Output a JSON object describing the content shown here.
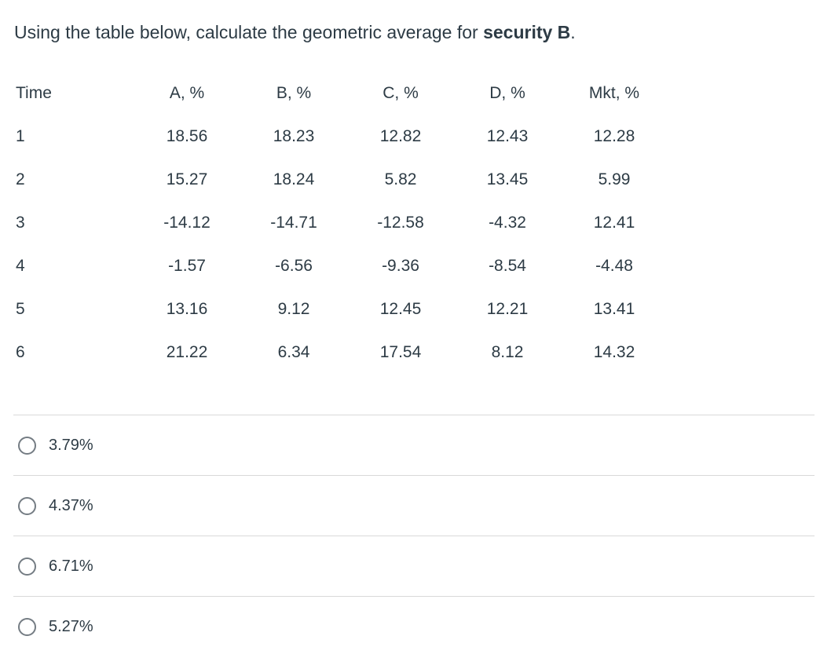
{
  "question": {
    "prefix": "Using the table below, calculate the geometric average for ",
    "emphasis": "security B",
    "suffix": "."
  },
  "table": {
    "headers": [
      "Time",
      "A, %",
      "B, %",
      "C, %",
      "D, %",
      "Mkt, %"
    ],
    "rows": [
      [
        "1",
        "18.56",
        "18.23",
        "12.82",
        "12.43",
        "12.28"
      ],
      [
        "2",
        "15.27",
        "18.24",
        "5.82",
        "13.45",
        "5.99"
      ],
      [
        "3",
        "-14.12",
        "-14.71",
        "-12.58",
        "-4.32",
        "12.41"
      ],
      [
        "4",
        "-1.57",
        "-6.56",
        "-9.36",
        "-8.54",
        "-4.48"
      ],
      [
        "5",
        "13.16",
        "9.12",
        "12.45",
        "12.21",
        "13.41"
      ],
      [
        "6",
        "21.22",
        "6.34",
        "17.54",
        "8.12",
        "14.32"
      ]
    ]
  },
  "options": [
    "3.79%",
    "4.37%",
    "6.71%",
    "5.27%"
  ],
  "colors": {
    "text": "#2d3b45",
    "divider": "#d9d9d9",
    "radio_border": "#747c83",
    "background": "#ffffff"
  }
}
